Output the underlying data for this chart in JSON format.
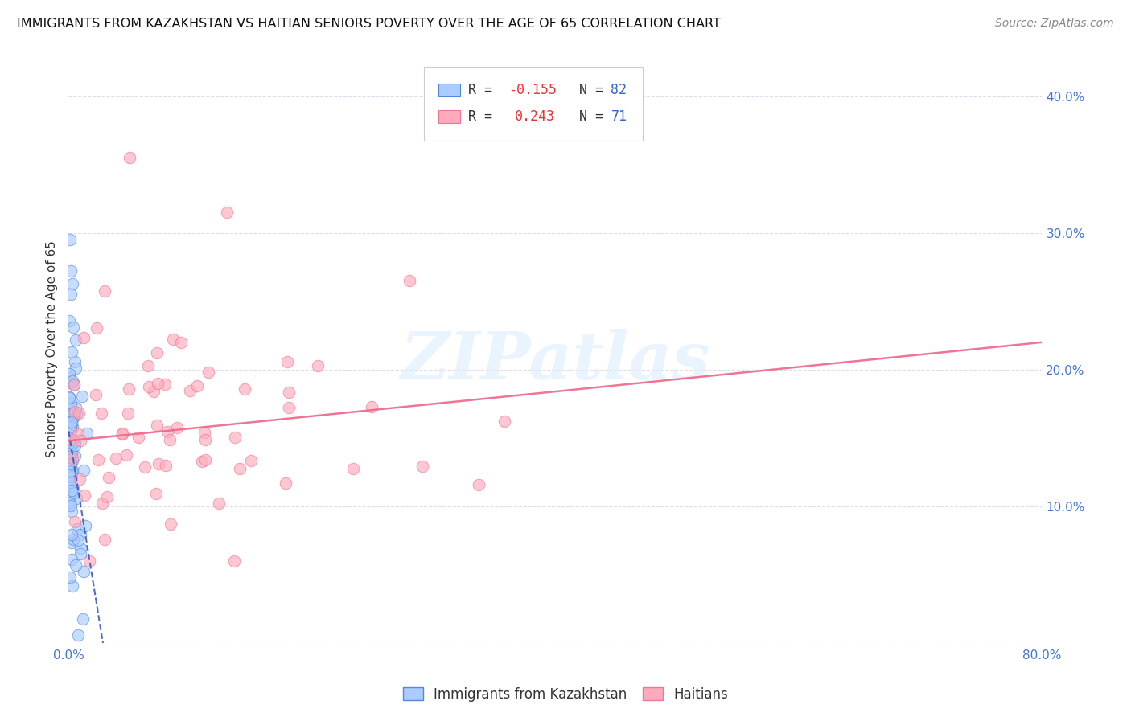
{
  "title": "IMMIGRANTS FROM KAZAKHSTAN VS HAITIAN SENIORS POVERTY OVER THE AGE OF 65 CORRELATION CHART",
  "source": "Source: ZipAtlas.com",
  "ylabel": "Seniors Poverty Over the Age of 65",
  "legend_bottom": [
    "Immigrants from Kazakhstan",
    "Haitians"
  ],
  "watermark": "ZIPatlas",
  "xmin": 0.0,
  "xmax": 0.8,
  "ymin": 0.0,
  "ymax": 0.43,
  "blue_color_face": "#aaccff",
  "blue_color_edge": "#5588dd",
  "pink_color_face": "#ffaabb",
  "pink_color_edge": "#ee7799",
  "blue_trend_color": "#3355bb",
  "pink_trend_color": "#ee6688",
  "axis_label_color": "#4477cc",
  "grid_color": "#ddddee",
  "title_color": "#111111",
  "source_color": "#888888",
  "ylabel_color": "#333333",
  "watermark_color": "#ddeeff",
  "legend_box_color": "#cccccc",
  "r_value_color": "#ee3333",
  "n_value_color": "#3366cc",
  "R_blue": -0.155,
  "N_blue": 82,
  "R_pink": 0.243,
  "N_pink": 71,
  "blue_trend_intercept": 0.155,
  "blue_trend_slope": -5.5,
  "pink_trend_intercept": 0.148,
  "pink_trend_slope": 0.09
}
